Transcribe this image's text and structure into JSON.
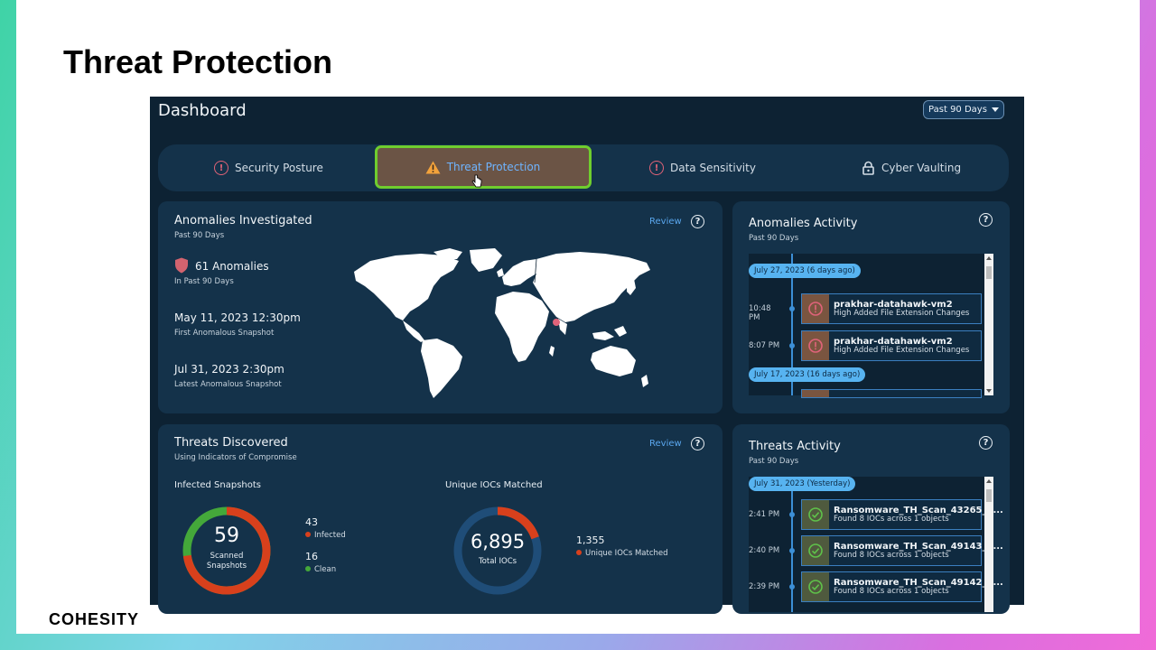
{
  "slide": {
    "title": "Threat Protection",
    "brand": "COHESITY"
  },
  "dashboard": {
    "title": "Dashboard",
    "range_label": "Past 90 Days",
    "tabs": [
      {
        "label": "Security Posture",
        "icon": "alert-circle-icon",
        "active": false
      },
      {
        "label": "Threat Protection",
        "icon": "warning-triangle-icon",
        "active": true
      },
      {
        "label": "Data Sensitivity",
        "icon": "alert-circle-icon",
        "active": false
      },
      {
        "label": "Cyber Vaulting",
        "icon": "lock-icon",
        "active": false
      }
    ]
  },
  "anomalies_investigated": {
    "title": "Anomalies Investigated",
    "subtitle": "Past 90 Days",
    "review": "Review",
    "help": "?",
    "count_label": "61 Anomalies",
    "count_sub": "In Past 90 Days",
    "first_value": "May 11, 2023 12:30pm",
    "first_label": "First Anomalous Snapshot",
    "latest_value": "Jul 31, 2023 2:30pm",
    "latest_label": "Latest Anomalous Snapshot"
  },
  "anomalies_activity": {
    "title": "Anomalies Activity",
    "subtitle": "Past 90 Days",
    "help": "?",
    "dates": [
      "July 27, 2023 (6 days ago)",
      "July 17, 2023 (16 days ago)"
    ],
    "events": [
      {
        "time": "10:48 PM",
        "name": "prakhar-datahawk-vm2",
        "desc": "High Added File Extension Changes"
      },
      {
        "time": "8:07 PM",
        "name": "prakhar-datahawk-vm2",
        "desc": "High Added File Extension Changes"
      }
    ]
  },
  "threats_discovered": {
    "title": "Threats Discovered",
    "subtitle": "Using Indicators of Compromise",
    "review": "Review",
    "help": "?",
    "infected_snapshots": {
      "label": "Infected Snapshots",
      "total": "59",
      "total_label_1": "Scanned",
      "total_label_2": "Snapshots",
      "infected_value": "43",
      "infected_label": "Infected",
      "clean_value": "16",
      "clean_label": "Clean",
      "infected_fraction": 0.729,
      "colors": {
        "infected": "#d8401c",
        "clean": "#44a83a"
      }
    },
    "unique_iocs": {
      "label": "Unique IOCs Matched",
      "total": "6,895",
      "total_label": "Total IOCs",
      "matched_value": "1,355",
      "matched_label": "Unique IOCs Matched",
      "matched_fraction": 0.197,
      "colors": {
        "matched": "#d8401c",
        "rest": "#1f4d78"
      }
    }
  },
  "threats_activity": {
    "title": "Threats Activity",
    "subtitle": "Past 90 Days",
    "help": "?",
    "date": "July 31, 2023 (Yesterday)",
    "events": [
      {
        "time": "2:41 PM",
        "name": "Ransomware_TH_Scan_43265_1...",
        "desc": "Found 8 IOCs across 1 objects"
      },
      {
        "time": "2:40 PM",
        "name": "Ransomware_TH_Scan_49143_1...",
        "desc": "Found 8 IOCs across 1 objects"
      },
      {
        "time": "2:39 PM",
        "name": "Ransomware_TH_Scan_49142_1...",
        "desc": "Found 8 IOCs across 1 objects"
      }
    ]
  }
}
